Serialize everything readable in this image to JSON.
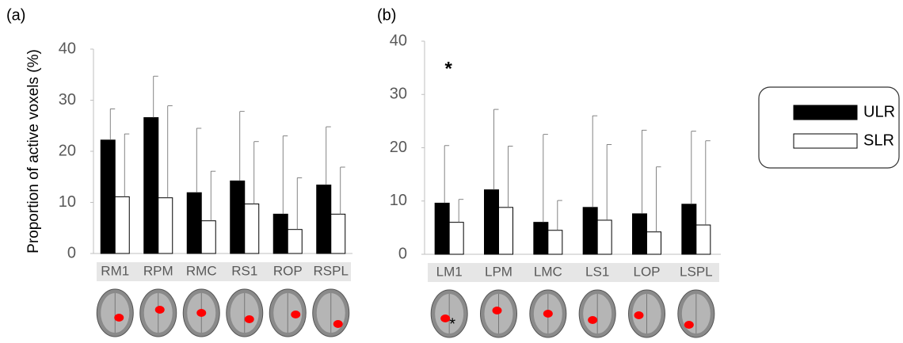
{
  "chart_data": [
    {
      "type": "bar",
      "label": "(a)",
      "y_label": "Proportion of active voxels (%)",
      "categories": [
        "RM1",
        "RPM",
        "RMC",
        "RS1",
        "ROP",
        "RSPL"
      ],
      "series": [
        {
          "color": "#000000",
          "values": [
            22.2,
            26.6,
            11.9,
            14.2,
            7.7,
            13.4
          ],
          "errors": [
            6.1,
            8.1,
            12.6,
            13.6,
            15.3,
            11.4
          ]
        },
        {
          "color": "#ffffff",
          "values": [
            11.1,
            10.9,
            6.4,
            9.7,
            4.7,
            7.7
          ],
          "errors": [
            12.3,
            18.0,
            9.7,
            12.2,
            10.1,
            9.2
          ]
        }
      ],
      "ylim": [
        0,
        40
      ],
      "yticks": [
        0,
        10,
        20,
        30,
        40
      ]
    },
    {
      "type": "bar",
      "label": "(b)",
      "annotation": "*",
      "image_annotation": "*",
      "categories": [
        "LM1",
        "LPM",
        "LMC",
        "LS1",
        "LOP",
        "LSPL"
      ],
      "series": [
        {
          "name": "ULR",
          "color": "#000000",
          "values": [
            9.6,
            12.1,
            6.0,
            8.8,
            7.6,
            9.4
          ],
          "errors": [
            10.8,
            15.1,
            16.5,
            17.2,
            15.7,
            13.7
          ]
        },
        {
          "name": "SLR",
          "color": "#ffffff",
          "values": [
            6.0,
            8.8,
            4.5,
            6.4,
            4.2,
            5.5
          ],
          "errors": [
            4.3,
            11.5,
            5.6,
            14.2,
            12.2,
            15.8
          ]
        }
      ],
      "ylim": [
        0,
        40
      ],
      "yticks": [
        0,
        10,
        20,
        30,
        40
      ]
    }
  ]
}
